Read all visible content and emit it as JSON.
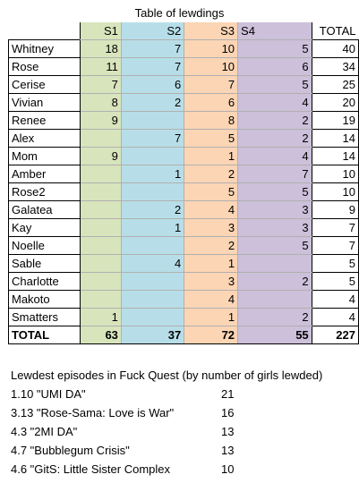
{
  "title": "Table of lewdings",
  "headers": {
    "name": "",
    "s1": "S1",
    "s2": "S2",
    "s3": "S3",
    "s4": "S4",
    "total": "TOTAL"
  },
  "rows": [
    {
      "name": "Whitney",
      "s1": "18",
      "s2": "7",
      "s3": "10",
      "s4": "5",
      "total": "40"
    },
    {
      "name": "Rose",
      "s1": "11",
      "s2": "7",
      "s3": "10",
      "s4": "6",
      "total": "34"
    },
    {
      "name": "Cerise",
      "s1": "7",
      "s2": "6",
      "s3": "7",
      "s4": "5",
      "total": "25"
    },
    {
      "name": "Vivian",
      "s1": "8",
      "s2": "2",
      "s3": "6",
      "s4": "4",
      "total": "20"
    },
    {
      "name": "Renee",
      "s1": "9",
      "s2": "",
      "s3": "8",
      "s4": "2",
      "total": "19"
    },
    {
      "name": "Alex",
      "s1": "",
      "s2": "7",
      "s3": "5",
      "s4": "2",
      "total": "14"
    },
    {
      "name": "Mom",
      "s1": "9",
      "s2": "",
      "s3": "1",
      "s4": "4",
      "total": "14"
    },
    {
      "name": "Amber",
      "s1": "",
      "s2": "1",
      "s3": "2",
      "s4": "7",
      "total": "10"
    },
    {
      "name": "Rose2",
      "s1": "",
      "s2": "",
      "s3": "5",
      "s4": "5",
      "total": "10"
    },
    {
      "name": "Galatea",
      "s1": "",
      "s2": "2",
      "s3": "4",
      "s4": "3",
      "total": "9"
    },
    {
      "name": "Kay",
      "s1": "",
      "s2": "1",
      "s3": "3",
      "s4": "3",
      "total": "7"
    },
    {
      "name": "Noelle",
      "s1": "",
      "s2": "",
      "s3": "2",
      "s4": "5",
      "total": "7"
    },
    {
      "name": "Sable",
      "s1": "",
      "s2": "4",
      "s3": "1",
      "s4": "",
      "total": "5"
    },
    {
      "name": "Charlotte",
      "s1": "",
      "s2": "",
      "s3": "3",
      "s4": "2",
      "total": "5"
    },
    {
      "name": "Makoto",
      "s1": "",
      "s2": "",
      "s3": "4",
      "s4": "",
      "total": "4"
    },
    {
      "name": "Smatters",
      "s1": "1",
      "s2": "",
      "s3": "1",
      "s4": "2",
      "total": "4"
    }
  ],
  "totals": {
    "name": "TOTAL",
    "s1": "63",
    "s2": "37",
    "s3": "72",
    "s4": "55",
    "total": "227"
  },
  "episodes_heading": "Lewdest episodes in Fuck Quest (by number of girls lewded)",
  "episodes": [
    {
      "title": "1.10 \"UMI DA\"",
      "count": "21"
    },
    {
      "title": "3.13 \"Rose-Sama: Love is War\"",
      "count": "16"
    },
    {
      "title": "4.3 \"2MI DA\"",
      "count": "13"
    },
    {
      "title": "4.7 \"Bubblegum Crisis\"",
      "count": "13"
    },
    {
      "title": "4.6 \"GitS: Little Sister Complex",
      "count": "10"
    }
  ]
}
